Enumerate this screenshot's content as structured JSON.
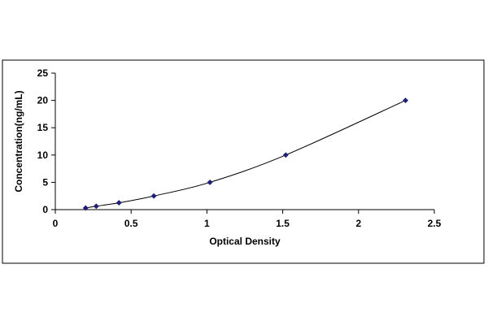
{
  "chart_data": {
    "type": "scatter",
    "title": "",
    "xlabel": "Optical Density",
    "ylabel": "Concentration(ng/mL)",
    "xlim": [
      0,
      2.5
    ],
    "ylim": [
      0,
      25
    ],
    "xticks": [
      "0",
      "0.5",
      "1",
      "1.5",
      "2",
      "2.5"
    ],
    "yticks": [
      "0",
      "5",
      "10",
      "15",
      "20",
      "25"
    ],
    "grid": false,
    "legend": "none",
    "marker": "diamond",
    "marker_color": "#1f1f7a",
    "fit_line": "smooth curve through points",
    "series": [
      {
        "x": [
          0.2,
          0.27,
          0.42,
          0.65,
          1.02,
          1.52,
          2.31
        ],
        "y": [
          0.3,
          0.625,
          1.25,
          2.5,
          5,
          10,
          20
        ]
      }
    ]
  }
}
